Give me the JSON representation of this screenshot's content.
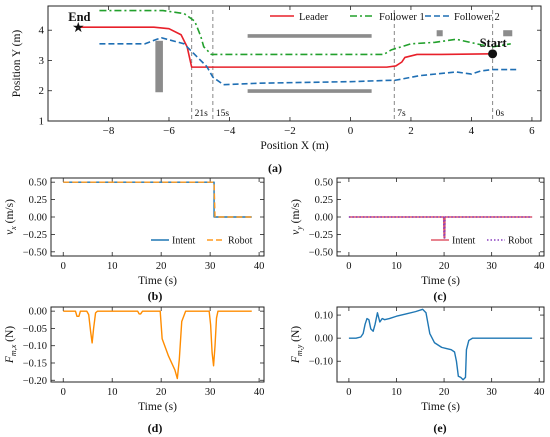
{
  "colors": {
    "leader": "#e8202a",
    "follower1": "#22a02c",
    "follower2": "#1f6fb4",
    "intent_v": "#1f77b4",
    "robot_vx": "#ff9a1f",
    "intent_vy": "#e05a6a",
    "robot_vy": "#8a3fbf",
    "force_x": "#ff8c00",
    "force_y": "#1f77b4",
    "obstacle": "#8c8c8c",
    "marker": "#888888"
  },
  "labels": {
    "a": "(a)",
    "b": "(b)",
    "c": "(c)",
    "d": "(d)",
    "e": "(e)"
  },
  "chart_data": [
    {
      "id": "a",
      "type": "line",
      "xlabel": "Position X (m)",
      "ylabel": "Position Y (m)",
      "xlim": [
        -10,
        6.3
      ],
      "ylim": [
        1,
        4.8
      ],
      "xticks": [
        -8,
        -6,
        -4,
        -2,
        0,
        2,
        4,
        6
      ],
      "yticks": [
        1,
        2,
        3,
        4
      ],
      "grid": false,
      "legend_position": "top-right",
      "series": [
        {
          "name": "Leader",
          "style": "solid",
          "x": [
            -9,
            -6.5,
            -6.0,
            -5.6,
            -5.4,
            -5.3,
            -5.25,
            -3,
            0,
            1.2,
            1.5,
            1.7,
            1.8,
            2.2,
            3,
            4.7
          ],
          "y": [
            4.1,
            4.1,
            4.05,
            3.85,
            3.45,
            3.0,
            2.78,
            2.78,
            2.78,
            2.78,
            2.82,
            2.95,
            3.1,
            3.2,
            3.2,
            3.22
          ]
        },
        {
          "name": "Follower 1",
          "style": "dashdot",
          "x": [
            -8.3,
            -6.2,
            -5.5,
            -5.15,
            -4.95,
            -4.85,
            -4.6,
            -3,
            0,
            1.1,
            1.35,
            2,
            2.8,
            3.5,
            4.4,
            4.7,
            5.3
          ],
          "y": [
            4.65,
            4.65,
            4.55,
            4.3,
            3.8,
            3.45,
            3.2,
            3.2,
            3.2,
            3.2,
            3.35,
            3.55,
            3.6,
            3.7,
            3.5,
            3.45,
            3.55
          ]
        },
        {
          "name": "Follower 2",
          "style": "dashed",
          "x": [
            -8.3,
            -6.8,
            -6.4,
            -6.25,
            -5.5,
            -4.75,
            -4.55,
            -4.2,
            -3,
            0,
            1.5,
            2.3,
            3.5,
            4.0,
            4.3,
            4.7,
            5.5
          ],
          "y": [
            3.55,
            3.55,
            3.7,
            3.75,
            3.55,
            2.8,
            2.45,
            2.2,
            2.25,
            2.3,
            2.35,
            2.5,
            2.62,
            2.55,
            2.65,
            2.7,
            2.7
          ]
        }
      ],
      "obstacles": [
        {
          "x": [
            -6.45,
            -6.2
          ],
          "y": [
            1.95,
            3.65
          ]
        },
        {
          "x": [
            -3.4,
            0.7
          ],
          "y": [
            3.75,
            3.87
          ]
        },
        {
          "x": [
            -3.4,
            0.7
          ],
          "y": [
            1.93,
            2.05
          ]
        },
        {
          "x": [
            2.85,
            3.05
          ],
          "y": [
            3.8,
            4.0
          ]
        },
        {
          "x": [
            5.05,
            5.35
          ],
          "y": [
            3.8,
            4.0
          ]
        }
      ],
      "markers": [
        {
          "x": -5.25,
          "label": "21s"
        },
        {
          "x": -4.55,
          "label": "15s"
        },
        {
          "x": 1.45,
          "label": "7s"
        },
        {
          "x": 4.7,
          "label": "0s"
        }
      ],
      "annotations": [
        {
          "text": "End",
          "x": -9,
          "y": 4.1
        },
        {
          "text": "Start",
          "x": 4.7,
          "y": 3.22
        }
      ]
    },
    {
      "id": "b",
      "type": "line",
      "xlabel": "Time (s)",
      "ylabel": "v",
      "ylabel_sub": "x",
      "ylabel_unit": " (m/s)",
      "xlim": [
        -2.5,
        41
      ],
      "ylim": [
        -0.56,
        0.56
      ],
      "xticks": [
        0,
        10,
        20,
        30,
        40
      ],
      "yticks": [
        -0.5,
        -0.25,
        0.0,
        0.25,
        0.5
      ],
      "yticklabels": [
        "−0.50",
        "−0.25",
        "0.00",
        "0.25",
        "0.50"
      ],
      "legend_position": "bottom-right",
      "series": [
        {
          "name": "Intent",
          "style": "solid",
          "x": [
            0,
            30.8,
            30.8,
            38.5
          ],
          "y": [
            0.5,
            0.5,
            0,
            0
          ]
        },
        {
          "name": "Robot",
          "style": "dashed",
          "x": [
            0,
            30.8,
            31.0,
            38.5
          ],
          "y": [
            0.5,
            0.5,
            0,
            0
          ]
        }
      ]
    },
    {
      "id": "c",
      "type": "line",
      "xlabel": "Time (s)",
      "ylabel": "v",
      "ylabel_sub": "y",
      "ylabel_unit": " (m/s)",
      "xlim": [
        -2.5,
        41
      ],
      "ylim": [
        -0.56,
        0.56
      ],
      "xticks": [
        0,
        10,
        20,
        30,
        40
      ],
      "yticks": [
        -0.5,
        -0.25,
        0.0,
        0.25,
        0.5
      ],
      "yticklabels": [
        "−0.50",
        "−0.25",
        "0.00",
        "0.25",
        "0.50"
      ],
      "legend_position": "bottom-right",
      "series": [
        {
          "name": "Intent",
          "style": "solid",
          "x": [
            0,
            19.9,
            20.0,
            20.15,
            20.2,
            38.5
          ],
          "y": [
            0,
            0,
            -0.3,
            -0.3,
            0,
            0
          ]
        },
        {
          "name": "Robot",
          "style": "dotted",
          "x": [
            0,
            19.9,
            20.0,
            20.15,
            20.2,
            38.5
          ],
          "y": [
            0,
            0,
            -0.3,
            -0.3,
            0,
            0
          ]
        }
      ]
    },
    {
      "id": "d",
      "type": "line",
      "xlabel": "Time (s)",
      "ylabel": "F",
      "ylabel_sub": "m,x",
      "ylabel_unit": " (N)",
      "xlim": [
        -2.5,
        41
      ],
      "ylim": [
        -0.205,
        0.012
      ],
      "xticks": [
        0,
        10,
        20,
        30,
        40
      ],
      "yticks": [
        -0.2,
        -0.15,
        -0.1,
        -0.05,
        0.0
      ],
      "yticklabels": [
        "−0.20",
        "−0.15",
        "−0.10",
        "−0.05",
        "0.00"
      ],
      "series": [
        {
          "name": "",
          "style": "solid",
          "x": [
            0,
            2.5,
            2.8,
            3.2,
            3.5,
            4.8,
            5.2,
            5.6,
            5.9,
            6.2,
            6.6,
            7.0,
            15.2,
            15.5,
            15.8,
            16.2,
            19.8,
            20.2,
            21.5,
            22.8,
            23.3,
            23.7,
            24.2,
            25.0,
            29.8,
            30.1,
            30.4,
            30.7,
            31.0,
            31.3,
            31.6,
            38.5
          ],
          "y": [
            0,
            0,
            -0.015,
            -0.015,
            0,
            0,
            -0.01,
            -0.06,
            -0.092,
            -0.05,
            -0.005,
            0,
            0,
            -0.008,
            -0.008,
            0,
            0,
            -0.08,
            -0.13,
            -0.17,
            -0.195,
            -0.14,
            -0.03,
            0,
            0,
            -0.04,
            -0.12,
            -0.158,
            -0.1,
            -0.02,
            0,
            0
          ]
        }
      ]
    },
    {
      "id": "e",
      "type": "line",
      "xlabel": "Time (s)",
      "ylabel": "F",
      "ylabel_sub": "m,y",
      "ylabel_unit": " (N)",
      "xlim": [
        -2.5,
        41
      ],
      "ylim": [
        -0.19,
        0.135
      ],
      "xticks": [
        0,
        10,
        20,
        30,
        40
      ],
      "yticks": [
        -0.1,
        0.0,
        0.1
      ],
      "yticklabels": [
        "−0.10",
        "0.00",
        "0.10"
      ],
      "series": [
        {
          "name": "",
          "style": "solid",
          "x": [
            0,
            1.5,
            2.5,
            3.0,
            3.4,
            3.8,
            4.2,
            4.6,
            5.1,
            5.5,
            6.0,
            6.5,
            7.0,
            7.5,
            8.5,
            10,
            12,
            14,
            15.5,
            16.2,
            17,
            18,
            19.5,
            20.5,
            21.5,
            22.2,
            22.6,
            23.0,
            23.5,
            24.0,
            24.5,
            24.7,
            25.2,
            26,
            38.5
          ],
          "y": [
            0,
            0,
            0.005,
            0.02,
            0.06,
            0.085,
            0.08,
            0.04,
            0.03,
            0.06,
            0.11,
            0.07,
            0.085,
            0.08,
            0.085,
            0.095,
            0.105,
            0.115,
            0.125,
            0.11,
            0.02,
            -0.02,
            -0.04,
            -0.045,
            -0.05,
            -0.06,
            -0.1,
            -0.165,
            -0.17,
            -0.18,
            -0.17,
            -0.05,
            -0.01,
            0,
            0
          ]
        }
      ]
    }
  ]
}
